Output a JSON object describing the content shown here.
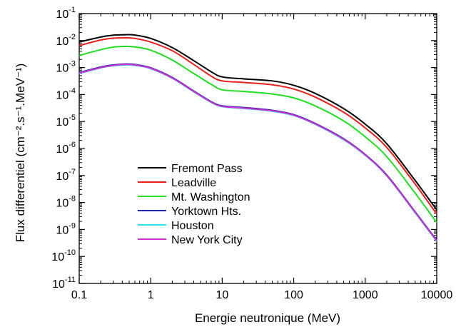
{
  "chart_data": {
    "type": "line",
    "title": "",
    "xlabel": "Energie neutronique (MeV)",
    "ylabel": "Flux differentiel (cm⁻².s⁻¹.MeV⁻¹)",
    "xscale": "log",
    "yscale": "log",
    "xlim": [
      0.1,
      10000
    ],
    "ylim": [
      1e-11,
      0.1
    ],
    "grid": false,
    "legend_position": "bottom-left",
    "x_ticks": [
      {
        "value": 0.1,
        "label": "0.1"
      },
      {
        "value": 1,
        "label": "1"
      },
      {
        "value": 10,
        "label": "10"
      },
      {
        "value": 100,
        "label": "100"
      },
      {
        "value": 1000,
        "label": "1000"
      },
      {
        "value": 10000,
        "label": "10000"
      }
    ],
    "y_ticks": [
      {
        "value": 1e-11,
        "mantissa": "10",
        "exp": "-11"
      },
      {
        "value": 1e-10,
        "mantissa": "10",
        "exp": "-10"
      },
      {
        "value": 1e-09,
        "mantissa": "10",
        "exp": "-9"
      },
      {
        "value": 1e-08,
        "mantissa": "10",
        "exp": "-8"
      },
      {
        "value": 1e-07,
        "mantissa": "10",
        "exp": "-7"
      },
      {
        "value": 1e-06,
        "mantissa": "10",
        "exp": "-6"
      },
      {
        "value": 1e-05,
        "mantissa": "10",
        "exp": "-5"
      },
      {
        "value": 0.0001,
        "mantissa": "10",
        "exp": "-4"
      },
      {
        "value": 0.001,
        "mantissa": "10",
        "exp": "-3"
      },
      {
        "value": 0.01,
        "mantissa": "10",
        "exp": "-2"
      },
      {
        "value": 0.1,
        "mantissa": "10",
        "exp": "-1"
      }
    ],
    "x": [
      0.1,
      0.2,
      0.3,
      0.45,
      0.6,
      1,
      2,
      4,
      7,
      10,
      20,
      50,
      100,
      200,
      500,
      1000,
      2000,
      5000,
      10000
    ],
    "series": [
      {
        "name": "Fremont Pass",
        "color": "#000000",
        "values": [
          0.0088,
          0.0135,
          0.0158,
          0.0165,
          0.016,
          0.012,
          0.0055,
          0.0018,
          0.0007,
          0.00045,
          0.00038,
          0.00032,
          0.00022,
          0.00011,
          3e-05,
          8e-06,
          1.5e-06,
          6.5e-08,
          5.3e-09
        ]
      },
      {
        "name": "Leadville",
        "color": "#e8201c",
        "values": [
          0.0065,
          0.0105,
          0.0122,
          0.0126,
          0.012,
          0.0088,
          0.0042,
          0.0013,
          0.00048,
          0.00032,
          0.00028,
          0.00023,
          0.00016,
          8e-05,
          2.2e-05,
          5.8e-06,
          1.1e-06,
          4.8e-08,
          3.7e-09
        ]
      },
      {
        "name": "Mt. Washington",
        "color": "#22dd22",
        "values": [
          0.0028,
          0.0046,
          0.0057,
          0.0061,
          0.0058,
          0.0044,
          0.0019,
          0.0006,
          0.00024,
          0.00015,
          0.00013,
          0.000105,
          7.5e-05,
          3.8e-05,
          1.05e-05,
          2.7e-06,
          5e-07,
          2.2e-08,
          1.8e-09
        ]
      },
      {
        "name": "Yorktown Hts.",
        "color": "#2020bb",
        "values": [
          0.00065,
          0.00105,
          0.00125,
          0.00135,
          0.0013,
          0.00098,
          0.00043,
          0.000135,
          5.5e-05,
          3.8e-05,
          3.3e-05,
          2.6e-05,
          1.8e-05,
          8.5e-06,
          2.3e-06,
          6e-07,
          1.05e-07,
          4.5e-09,
          4e-10
        ]
      },
      {
        "name": "Houston",
        "color": "#33e0ee",
        "values": [
          0.0006,
          0.00097,
          0.00116,
          0.00125,
          0.0012,
          0.00091,
          0.0004,
          0.000126,
          5.1e-05,
          3.55e-05,
          3.05e-05,
          2.4e-05,
          1.67e-05,
          7.9e-06,
          2.1e-06,
          5.6e-07,
          9.7e-08,
          4.1e-09,
          3.6e-10
        ]
      },
      {
        "name": "New York City",
        "color": "#cc33cc",
        "values": [
          0.00062,
          0.001,
          0.0012,
          0.0013,
          0.00125,
          0.00094,
          0.00041,
          0.00013,
          5.3e-05,
          3.65e-05,
          3.15e-05,
          2.5e-05,
          1.72e-05,
          8.1e-06,
          2.2e-06,
          5.8e-07,
          1e-07,
          4.3e-09,
          3.8e-10
        ]
      }
    ]
  }
}
